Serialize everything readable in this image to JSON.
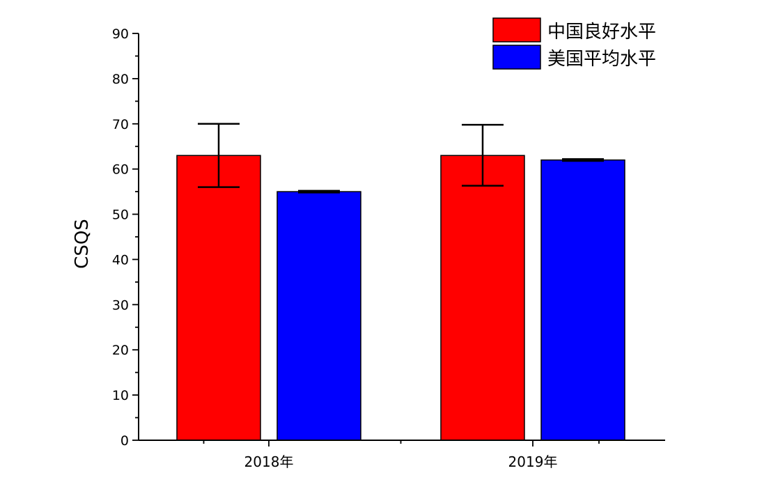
{
  "chart_data": {
    "type": "bar",
    "title": "",
    "xlabel": "",
    "ylabel": "CSQS",
    "ylim": [
      0,
      90
    ],
    "y_major_step": 10,
    "y_minor_step": 5,
    "categories": [
      "2018年",
      "2019年"
    ],
    "series": [
      {
        "name": "中国良好水平",
        "color": "#ff0000",
        "values": [
          63,
          63
        ],
        "error_low": [
          56,
          56.3
        ],
        "error_high": [
          70,
          69.8
        ]
      },
      {
        "name": "美国平均水平",
        "color": "#0000ff",
        "values": [
          55,
          62
        ],
        "error_low": [
          54.8,
          61.8
        ],
        "error_high": [
          55.2,
          62.2
        ]
      }
    ],
    "legend": "top-right",
    "grid": false
  }
}
